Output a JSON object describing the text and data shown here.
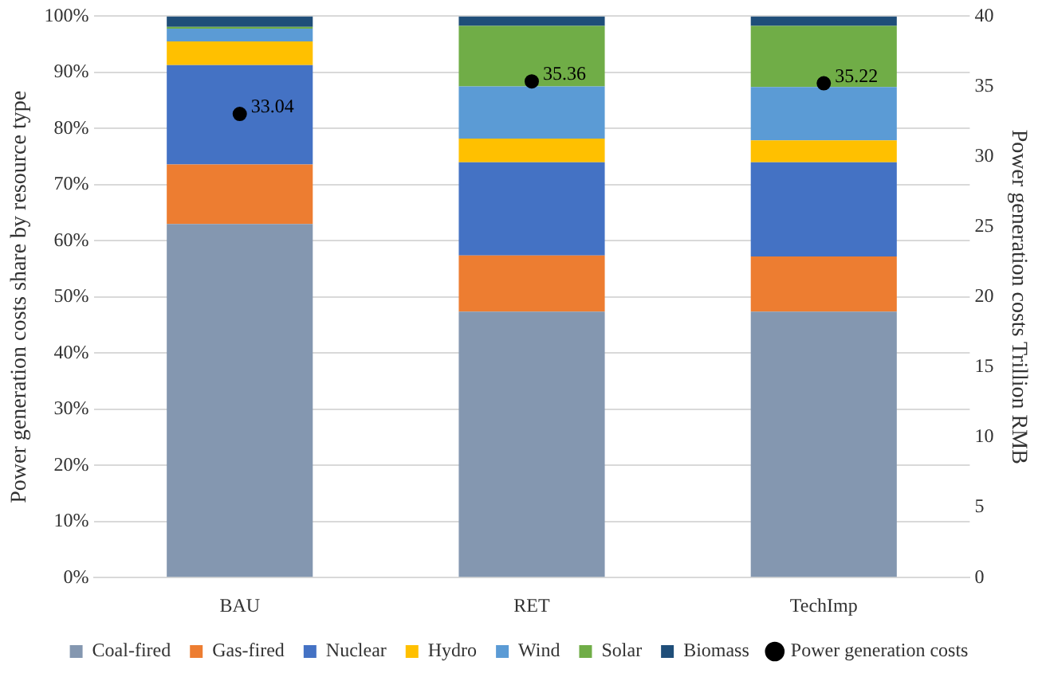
{
  "chart_data": {
    "type": "bar",
    "stacked": true,
    "categories": [
      "BAU",
      "RET",
      "TechImp"
    ],
    "ylabel": "Power generation costs share by resource type",
    "y2label": "Power generation costs Trillion RMB",
    "ylim": [
      0,
      100
    ],
    "yticks": [
      {
        "value": 0,
        "label": "0%"
      },
      {
        "value": 10,
        "label": "10%"
      },
      {
        "value": 20,
        "label": "20%"
      },
      {
        "value": 30,
        "label": "30%"
      },
      {
        "value": 40,
        "label": "40%"
      },
      {
        "value": 50,
        "label": "50%"
      },
      {
        "value": 60,
        "label": "60%"
      },
      {
        "value": 70,
        "label": "70%"
      },
      {
        "value": 80,
        "label": "80%"
      },
      {
        "value": 90,
        "label": "90%"
      },
      {
        "value": 100,
        "label": "100%"
      }
    ],
    "y2lim": [
      0,
      40
    ],
    "y2ticks": [
      0,
      5,
      10,
      15,
      20,
      25,
      30,
      35,
      40
    ],
    "grid": "y",
    "legend": "bottom",
    "series": [
      {
        "name": "Coal-fired",
        "color": "#8497b0",
        "values": [
          63.0,
          47.4,
          47.4
        ]
      },
      {
        "name": "Gas-fired",
        "color": "#ed7d31",
        "values": [
          10.6,
          10.0,
          9.8
        ]
      },
      {
        "name": "Nuclear",
        "color": "#4472c4",
        "values": [
          17.7,
          16.6,
          16.8
        ]
      },
      {
        "name": "Hydro",
        "color": "#ffc000",
        "values": [
          4.2,
          4.2,
          3.9
        ]
      },
      {
        "name": "Wind",
        "color": "#5b9bd5",
        "values": [
          2.3,
          9.3,
          9.5
        ]
      },
      {
        "name": "Solar",
        "color": "#70ad47",
        "values": [
          0.3,
          10.8,
          10.9
        ]
      },
      {
        "name": "Biomass",
        "color": "#1f4e79",
        "values": [
          1.9,
          1.7,
          1.7
        ]
      },
      {
        "name": "Power generation costs",
        "type": "scatter",
        "axis": "y2",
        "marker": "circle",
        "color": "#000000",
        "values": [
          33.04,
          35.36,
          35.22
        ],
        "value_labels": [
          "33.04",
          "35.36",
          "35.22"
        ]
      }
    ]
  }
}
